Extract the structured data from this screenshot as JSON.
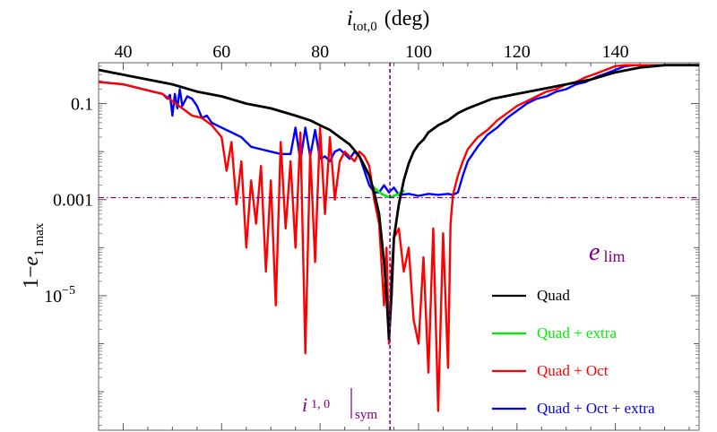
{
  "chart_data": {
    "type": "line",
    "top_axis": {
      "label_main": "i",
      "label_sub": "tot,0",
      "label_units": "(deg)",
      "range": [
        35,
        157
      ],
      "ticks": [
        40,
        60,
        80,
        100,
        120,
        140
      ],
      "tick_labels": [
        "40",
        "60",
        "80",
        "100",
        "120",
        "140"
      ]
    },
    "y_axis": {
      "scale": "log",
      "label_prefix": "1−",
      "label_var": "e",
      "label_sub": "1 max",
      "range_log10": [
        -7.8,
        -0.15
      ],
      "major_ticks_log10": [
        -1,
        -3,
        -5
      ],
      "tick_labels": [
        "0.1",
        "0.001",
        "10"
      ],
      "tick_label_exponent": [
        "",
        "",
        "−5"
      ]
    },
    "reference_lines": {
      "e_lim": {
        "value": 0.0011,
        "label_var": "e",
        "label_sub": "lim",
        "color": "#800080"
      },
      "i_sym": {
        "value": 94.2,
        "label_var": "i",
        "label_sub": "1, 0",
        "label_after": "sym",
        "color": "#800080"
      }
    },
    "legend": {
      "position": "bottom-right",
      "entries": [
        {
          "label": "Quad",
          "color": "#000000"
        },
        {
          "label": "Quad + extra",
          "color": "#00ee00"
        },
        {
          "label": "Quad + Oct",
          "color": "#ff0000"
        },
        {
          "label": "Quad + Oct + extra",
          "color": "#0000ff"
        }
      ]
    },
    "series": [
      {
        "name": "Quad + Oct + extra",
        "color": "#0000ff",
        "width": 2.4,
        "x": [
          35,
          40,
          44,
          46,
          48,
          49,
          49.5,
          50,
          50.5,
          51,
          51.5,
          52,
          53,
          54,
          55,
          56,
          57,
          58,
          60,
          62,
          64,
          66,
          68,
          70,
          72,
          74,
          75,
          76,
          77,
          78,
          79,
          80,
          81,
          82,
          83,
          84,
          85,
          86,
          87,
          88,
          89,
          90,
          91,
          92,
          93,
          94,
          95,
          96,
          98,
          100,
          102,
          104,
          106,
          107,
          108,
          109,
          110,
          112,
          114,
          116,
          118,
          120,
          122,
          124,
          126,
          128,
          130,
          132,
          134,
          136,
          138,
          140,
          142,
          144,
          150,
          157
        ],
        "logy": [
          -0.55,
          -0.6,
          -0.7,
          -0.75,
          -0.8,
          -0.9,
          -0.82,
          -1.25,
          -0.8,
          -1.1,
          -0.7,
          -1.05,
          -0.85,
          -0.9,
          -1.05,
          -1.3,
          -1.25,
          -1.4,
          -1.5,
          -1.6,
          -1.7,
          -1.9,
          -1.95,
          -2.0,
          -2.05,
          -2.05,
          -1.5,
          -2.2,
          -1.5,
          -2.1,
          -1.55,
          -2.15,
          -2.1,
          -2.2,
          -2.0,
          -1.95,
          -2.05,
          -2.15,
          -2.0,
          -2.1,
          -2.4,
          -2.7,
          -2.85,
          -2.85,
          -2.7,
          -2.85,
          -2.75,
          -2.9,
          -2.88,
          -2.92,
          -2.88,
          -2.9,
          -2.88,
          -2.9,
          -2.85,
          -2.5,
          -2.2,
          -1.9,
          -1.65,
          -1.5,
          -1.3,
          -1.15,
          -1.0,
          -0.9,
          -0.85,
          -0.75,
          -0.7,
          -0.6,
          -0.55,
          -0.45,
          -0.38,
          -0.3,
          -0.22,
          -0.2,
          -0.2,
          -0.2
        ]
      },
      {
        "name": "Quad + Oct",
        "color": "#ff0000",
        "width": 2.4,
        "x": [
          35,
          40,
          44,
          46,
          48,
          50,
          52,
          54,
          56,
          58,
          60,
          61,
          62,
          63,
          64,
          65,
          66,
          67,
          68,
          69,
          70,
          71,
          72,
          73,
          74,
          75,
          76,
          77,
          78,
          79,
          80,
          81,
          82,
          83,
          84,
          85,
          86,
          87,
          88,
          89,
          90,
          91,
          92,
          93,
          93.5,
          94,
          94.5,
          95,
          96,
          97,
          98,
          99,
          100,
          101,
          102,
          103,
          104,
          105,
          106,
          106.5,
          107,
          108,
          109,
          110,
          112,
          114,
          116,
          118,
          120,
          122,
          124,
          126,
          128,
          130,
          132,
          134,
          136,
          138,
          140,
          142,
          144,
          150,
          157
        ],
        "logy": [
          -0.55,
          -0.6,
          -0.7,
          -0.75,
          -0.8,
          -0.95,
          -1.1,
          -1.25,
          -1.3,
          -1.45,
          -1.7,
          -2.4,
          -1.8,
          -3.1,
          -2.2,
          -4.0,
          -2.6,
          -3.5,
          -2.3,
          -4.5,
          -2.6,
          -5.2,
          -1.8,
          -3.6,
          -2.2,
          -4.0,
          -1.6,
          -6.2,
          -2.0,
          -4.3,
          -1.5,
          -3.3,
          -1.7,
          -3.0,
          -2.2,
          -2.0,
          -2.1,
          -2.2,
          -2.0,
          -2.1,
          -2.3,
          -3.0,
          -3.5,
          -5.2,
          -4.0,
          -6.0,
          -4.5,
          -3.8,
          -3.6,
          -4.5,
          -4.0,
          -5.5,
          -6.0,
          -4.2,
          -6.6,
          -3.6,
          -7.4,
          -3.7,
          -6.5,
          -3.5,
          -2.9,
          -2.5,
          -2.2,
          -1.95,
          -1.7,
          -1.55,
          -1.35,
          -1.2,
          -1.05,
          -0.95,
          -0.85,
          -0.75,
          -0.7,
          -0.6,
          -0.55,
          -0.45,
          -0.38,
          -0.3,
          -0.22,
          -0.2,
          -0.2,
          -0.2,
          -0.2
        ]
      },
      {
        "name": "Quad + extra",
        "color": "#00ee00",
        "width": 2.6,
        "x": [
          90.5,
          91.5,
          92.5,
          93.5,
          94.2,
          95,
          96,
          97
        ],
        "logy": [
          -2.7,
          -2.8,
          -2.88,
          -2.93,
          -2.95,
          -2.92,
          -2.88,
          -2.82
        ]
      },
      {
        "name": "Quad",
        "color": "#000000",
        "width": 2.8,
        "x": [
          35,
          40,
          45,
          50,
          55,
          60,
          65,
          70,
          75,
          78,
          80,
          82,
          84,
          86,
          88,
          89,
          90,
          91,
          92,
          93,
          93.5,
          94,
          94.5,
          95,
          96,
          97,
          98,
          99,
          100,
          101,
          102,
          104,
          106,
          108,
          110,
          115,
          120,
          125,
          130,
          135,
          140,
          145,
          150,
          157
        ],
        "logy": [
          -0.3,
          -0.4,
          -0.5,
          -0.6,
          -0.75,
          -0.85,
          -1.0,
          -1.1,
          -1.25,
          -1.35,
          -1.45,
          -1.55,
          -1.7,
          -1.85,
          -2.1,
          -2.3,
          -2.5,
          -2.85,
          -3.3,
          -4.3,
          -5.0,
          -5.9,
          -5.0,
          -3.8,
          -3.1,
          -2.6,
          -2.25,
          -2.0,
          -1.85,
          -1.75,
          -1.6,
          -1.45,
          -1.35,
          -1.2,
          -1.1,
          -0.9,
          -0.8,
          -0.7,
          -0.6,
          -0.5,
          -0.35,
          -0.25,
          -0.2,
          -0.2
        ]
      }
    ]
  }
}
